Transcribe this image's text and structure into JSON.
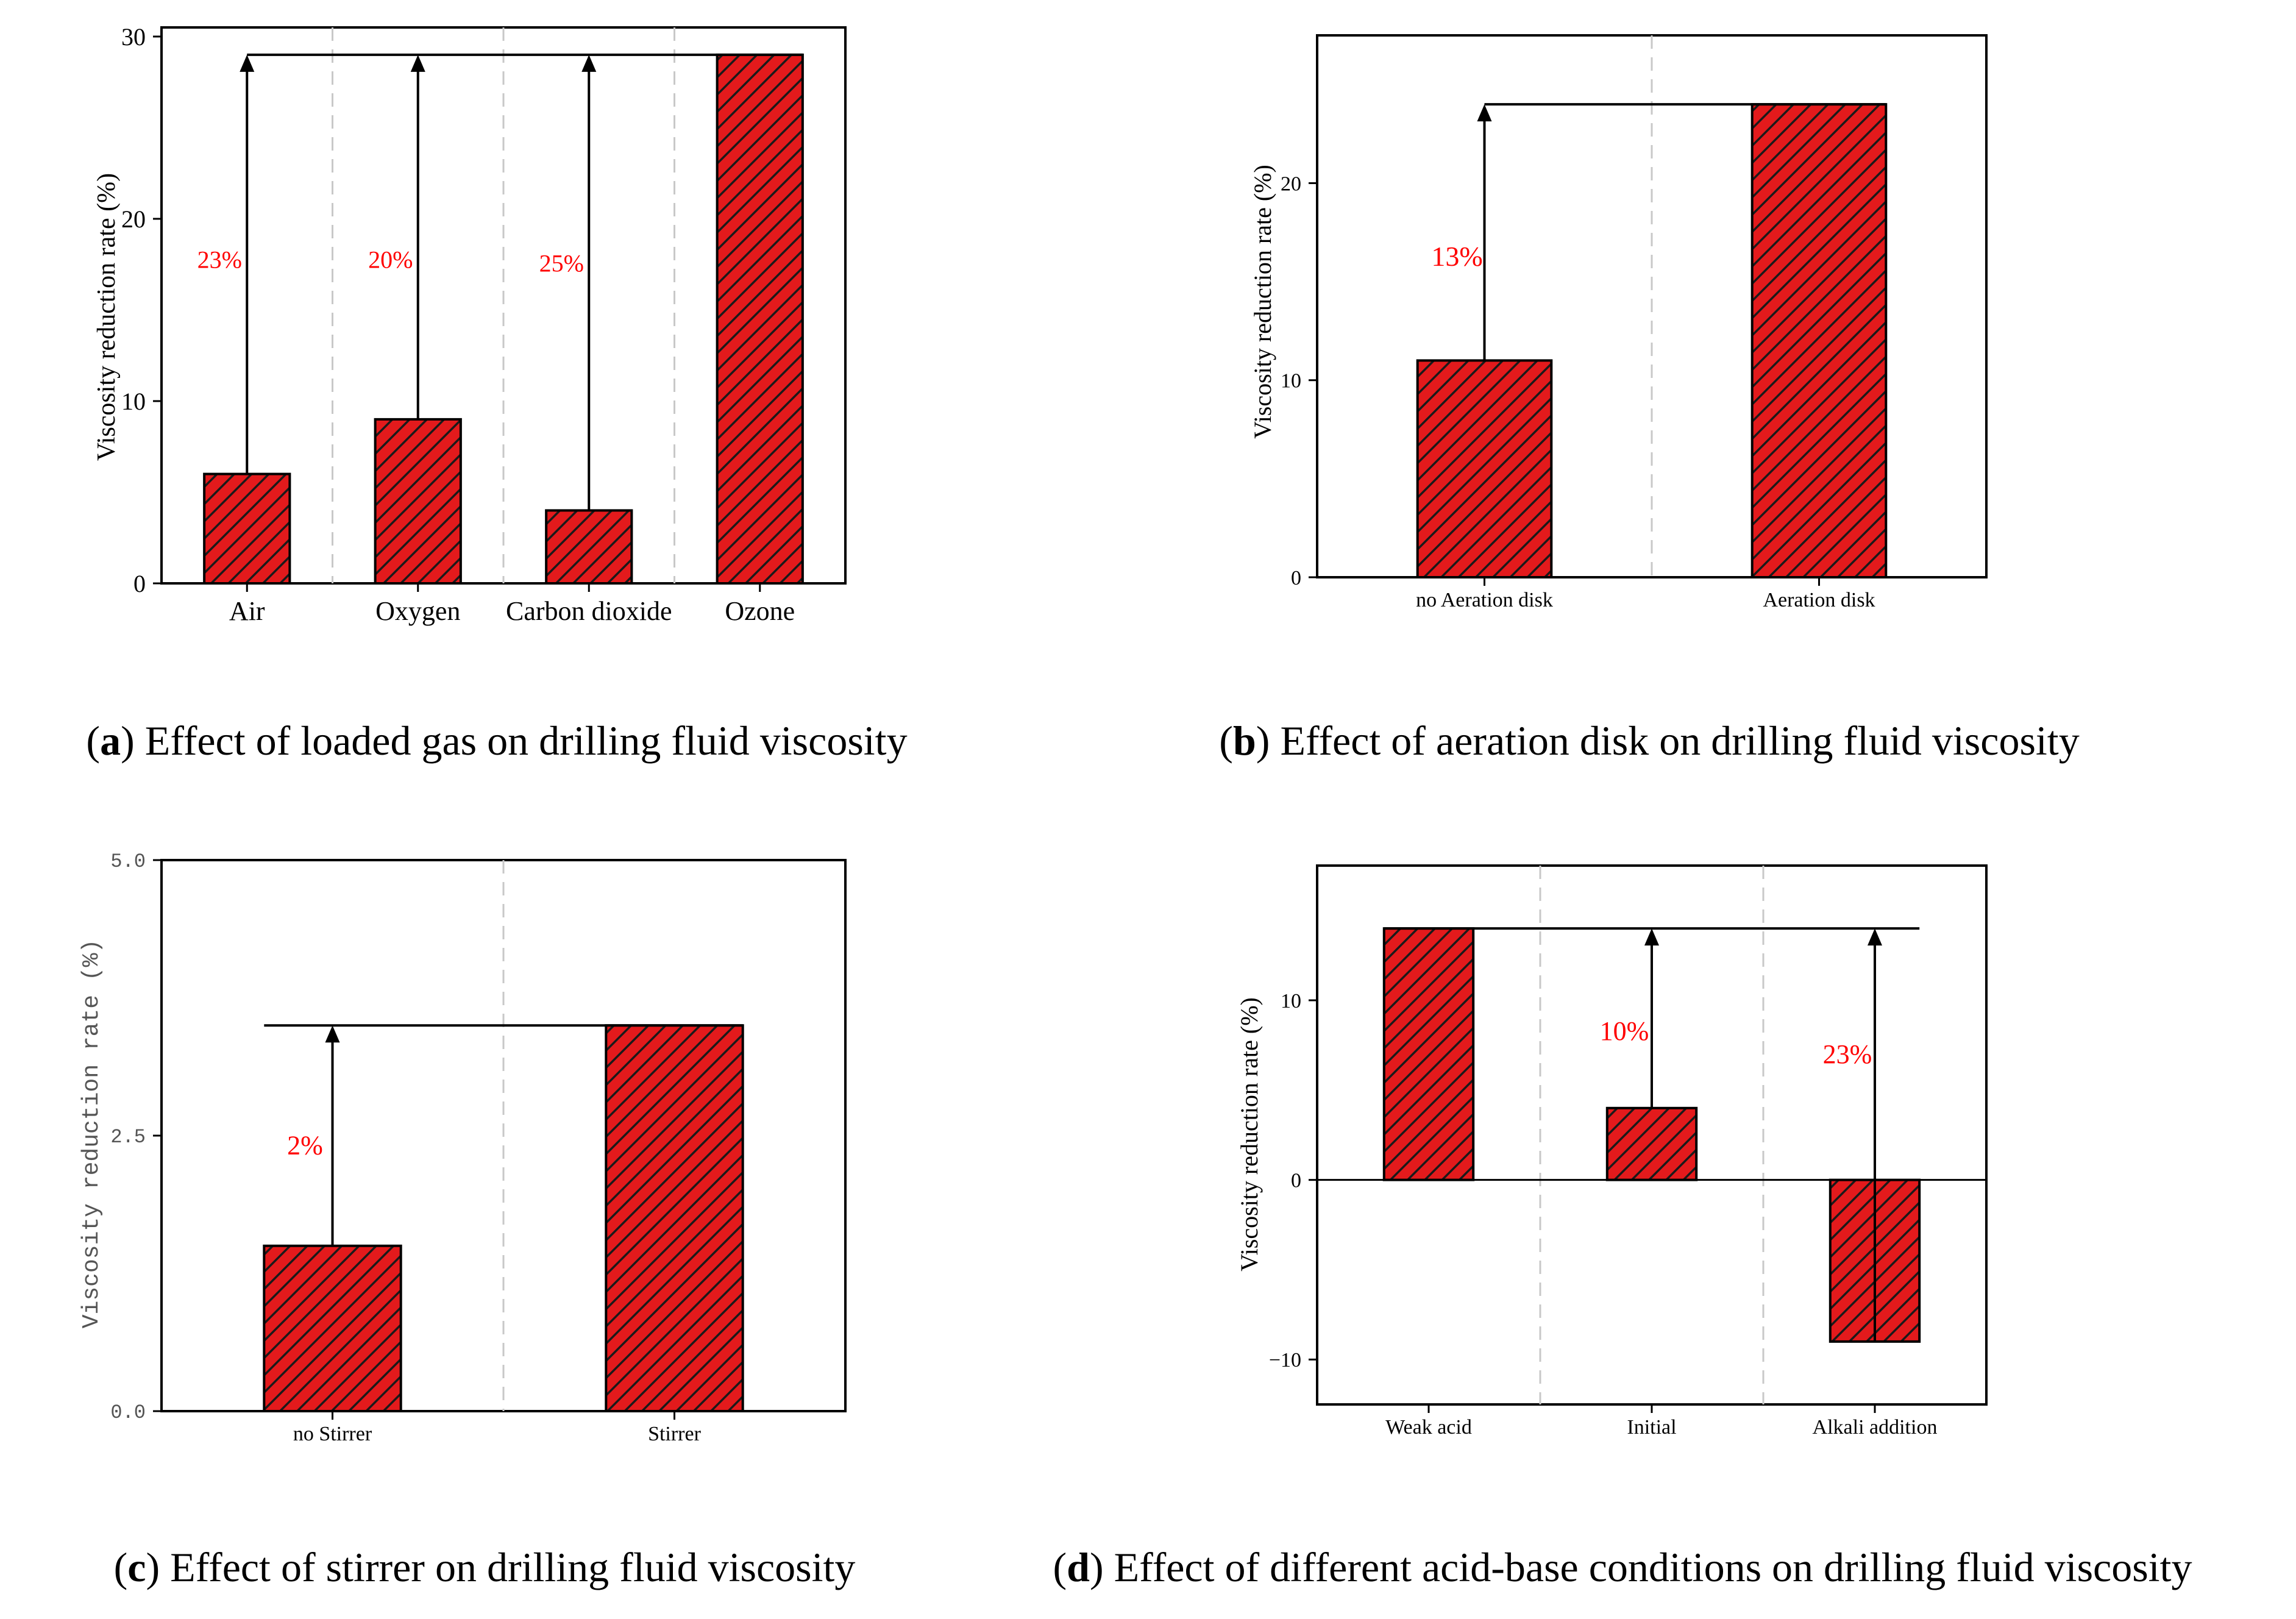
{
  "colors": {
    "bar_fill": "#e31a1c",
    "hatch": "#1a1a1a",
    "annotation": "#ff0000",
    "axis": "#000000",
    "separator": "#c8c8c8"
  },
  "chart_data": [
    {
      "id": "a",
      "type": "bar",
      "caption_letter": "a",
      "caption_text": "Effect of loaded gas on drilling fluid viscosity",
      "ylabel": "Viscosity reduction rate (%)",
      "categories": [
        "Air",
        "Oxygen",
        "Carbon dioxide",
        "Ozone"
      ],
      "values": [
        6,
        9,
        4,
        29
      ],
      "ylim": [
        0,
        30.5
      ],
      "yticks": [
        0,
        10,
        20,
        30
      ],
      "ytick_labels": [
        "0",
        "10",
        "20",
        "30"
      ],
      "reference_value": 29,
      "annotations": [
        {
          "category_index": 0,
          "label": "23%",
          "label_value": 17.3
        },
        {
          "category_index": 1,
          "label": "20%",
          "label_value": 17.3
        },
        {
          "category_index": 2,
          "label": "25%",
          "label_value": 17.1
        }
      ]
    },
    {
      "id": "b",
      "type": "bar",
      "caption_letter": "b",
      "caption_text": "Effect of aeration disk on drilling fluid viscosity",
      "ylabel": "Viscosity reduction rate (%)",
      "categories": [
        "no Aeration disk",
        "Aeration disk"
      ],
      "values": [
        11,
        24
      ],
      "ylim": [
        0,
        27.5
      ],
      "yticks": [
        0,
        10,
        20
      ],
      "ytick_labels": [
        "0",
        "10",
        "20"
      ],
      "reference_value": 24,
      "annotations": [
        {
          "category_index": 0,
          "label": "13%",
          "label_value": 15.8
        }
      ]
    },
    {
      "id": "c",
      "type": "bar",
      "caption_letter": "c",
      "caption_text": "Effect of stirrer on drilling fluid viscosity",
      "ylabel": "Viscosity reduction rate (%)",
      "categories": [
        "no Stirrer",
        "Stirrer"
      ],
      "values": [
        1.5,
        3.5
      ],
      "ylim": [
        0,
        5.0
      ],
      "yticks": [
        0,
        2.5,
        5.0
      ],
      "ytick_labels": [
        "0.0",
        "2.5",
        "5.0"
      ],
      "reference_value": 3.5,
      "annotations": [
        {
          "category_index": 0,
          "label": "2%",
          "label_value": 2.33
        }
      ]
    },
    {
      "id": "d",
      "type": "bar",
      "caption_letter": "d",
      "caption_text": "Effect of different acid-base conditions on drilling fluid viscosity",
      "ylabel": "Viscosity reduction rate (%)",
      "categories": [
        "Weak acid",
        "Initial",
        "Alkali addition"
      ],
      "values": [
        14,
        4,
        -9
      ],
      "ylim": [
        -12.5,
        17.5
      ],
      "yticks": [
        -10,
        0,
        10
      ],
      "ytick_labels": [
        "−10",
        "0",
        "10"
      ],
      "zero_line": true,
      "reference_value": 14,
      "annotations": [
        {
          "category_index": 1,
          "label": "10%",
          "label_value": 7.8
        },
        {
          "category_index": 2,
          "label": "23%",
          "label_value": 6.5
        }
      ]
    }
  ]
}
